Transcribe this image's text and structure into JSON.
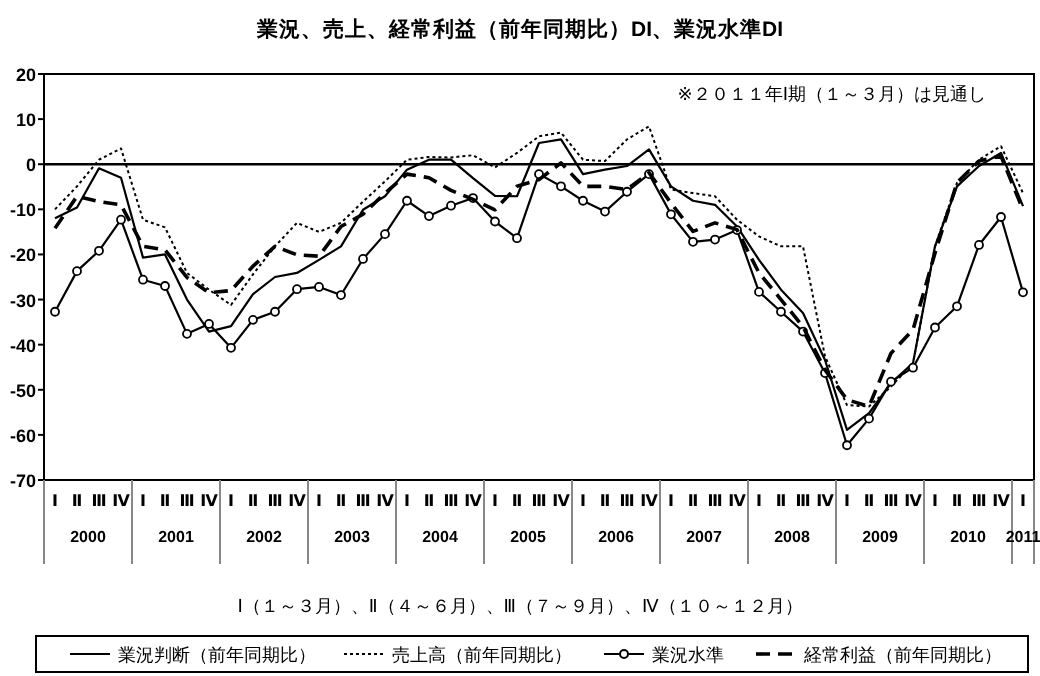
{
  "chart_data": {
    "type": "line",
    "title": "業況、売上、経常利益（前年同期比）DI、業況水準DI",
    "categories": [
      "Ⅰ",
      "Ⅱ",
      "Ⅲ",
      "Ⅳ",
      "Ⅰ",
      "Ⅱ",
      "Ⅲ",
      "Ⅳ",
      "Ⅰ",
      "Ⅱ",
      "Ⅲ",
      "Ⅳ",
      "Ⅰ",
      "Ⅱ",
      "Ⅲ",
      "Ⅳ",
      "Ⅰ",
      "Ⅱ",
      "Ⅲ",
      "Ⅳ",
      "Ⅰ",
      "Ⅱ",
      "Ⅲ",
      "Ⅳ",
      "Ⅰ",
      "Ⅱ",
      "Ⅲ",
      "Ⅳ",
      "Ⅰ",
      "Ⅱ",
      "Ⅲ",
      "Ⅳ",
      "Ⅰ",
      "Ⅱ",
      "Ⅲ",
      "Ⅳ",
      "Ⅰ",
      "Ⅱ",
      "Ⅲ",
      "Ⅳ",
      "Ⅰ",
      "Ⅱ",
      "Ⅲ",
      "Ⅳ",
      "Ⅰ"
    ],
    "series": [
      {
        "name": "業況判断（前年同期比）",
        "color": "#000000",
        "line_style": "solid",
        "marker": "none",
        "values": [
          -12,
          -9.6,
          -0.9,
          -3,
          -20.7,
          -20,
          -30,
          -37.1,
          -35.9,
          -28.8,
          -25,
          -24.1,
          -21.2,
          -18.2,
          -10.1,
          -7.1,
          -1.2,
          1,
          1,
          -3.1,
          -7,
          -7.1,
          4.7,
          5.5,
          -2.2,
          -1.2,
          -0.4,
          3.3,
          -4.9,
          -8.1,
          -9,
          -13.8,
          -21.2,
          -27.8,
          -33,
          -43.4,
          -58.9,
          -55.2,
          -48.5,
          -44.1,
          -18.2,
          -4.9,
          -0.4,
          2.5,
          -9.3
        ]
      },
      {
        "name": "売上高（前年同期比）",
        "color": "#000000",
        "line_style": "dotted",
        "marker": "none",
        "values": [
          -10,
          -4.9,
          1,
          3.5,
          -12.3,
          -14,
          -24.1,
          -27.8,
          -31.2,
          -24.4,
          -18.2,
          -13,
          -15,
          -13,
          -8.3,
          -3.8,
          1,
          1.6,
          1.5,
          2,
          -0.7,
          2.5,
          6.2,
          7,
          1,
          0.7,
          5.5,
          8.4,
          -5.6,
          -6.4,
          -7.1,
          -12.3,
          -16,
          -18.2,
          -18.2,
          -42.6,
          -53.4,
          -53.7,
          -49.3,
          -44.1,
          -18.2,
          -4.1,
          1,
          4,
          -6.4
        ]
      },
      {
        "name": "業況水準",
        "color": "#000000",
        "line_style": "solid",
        "marker": "circle",
        "values": [
          -32.7,
          -23.7,
          -19.2,
          -12.3,
          -25.6,
          -27,
          -37.6,
          -35.4,
          -40.7,
          -34.5,
          -32.7,
          -27.7,
          -27.2,
          -29,
          -21,
          -15.5,
          -8.1,
          -11.5,
          -9.2,
          -7.5,
          -12.7,
          -16.4,
          -2.2,
          -4.9,
          -8.1,
          -10.5,
          -6.1,
          -2.2,
          -11.1,
          -17.2,
          -16.7,
          -14.6,
          -28.3,
          -32.7,
          -37.1,
          -46.3,
          -62.3,
          -56.4,
          -48.2,
          -45.1,
          -36.2,
          -31.5,
          -17.9,
          -11.7,
          -28.4
        ]
      },
      {
        "name": "経常利益（前年同期比）",
        "color": "#000000",
        "line_style": "dashed",
        "marker": "none",
        "values": [
          -14.2,
          -7.1,
          -8.3,
          -9,
          -18.2,
          -19,
          -25.1,
          -28.5,
          -28,
          -22.6,
          -18.2,
          -20.1,
          -20.4,
          -13.8,
          -11.1,
          -6.4,
          -2.2,
          -3,
          -5.8,
          -7.8,
          -10.1,
          -4.9,
          -3.4,
          0.3,
          -4.9,
          -4.9,
          -5.6,
          -1.9,
          -8.6,
          -14.9,
          -13,
          -14.5,
          -24.1,
          -30,
          -36,
          -45.6,
          -52.2,
          -53.7,
          -41.9,
          -36.7,
          -19.7,
          -4.1,
          0.7,
          1.8,
          -10.1
        ]
      }
    ],
    "ylim": [
      -70,
      20
    ],
    "yticks": [
      -70,
      -60,
      -50,
      -40,
      -30,
      -20,
      -10,
      0,
      10,
      20
    ],
    "ref_lines": [
      {
        "axis": "y",
        "value": 0,
        "color": "#000000"
      }
    ],
    "grid": false,
    "legend": "bottom",
    "annotations": [
      "※２０１１年Ⅰ期（１～３月）は見通し",
      "2000",
      "2001",
      "2002",
      "2003",
      "2004",
      "2005",
      "2006",
      "2007",
      "2008",
      "2009",
      "2010",
      "2011",
      "Ⅰ（１～３月）、Ⅱ（４～６月）、Ⅲ（７～９月）、Ⅳ（１０～１２月）"
    ]
  }
}
